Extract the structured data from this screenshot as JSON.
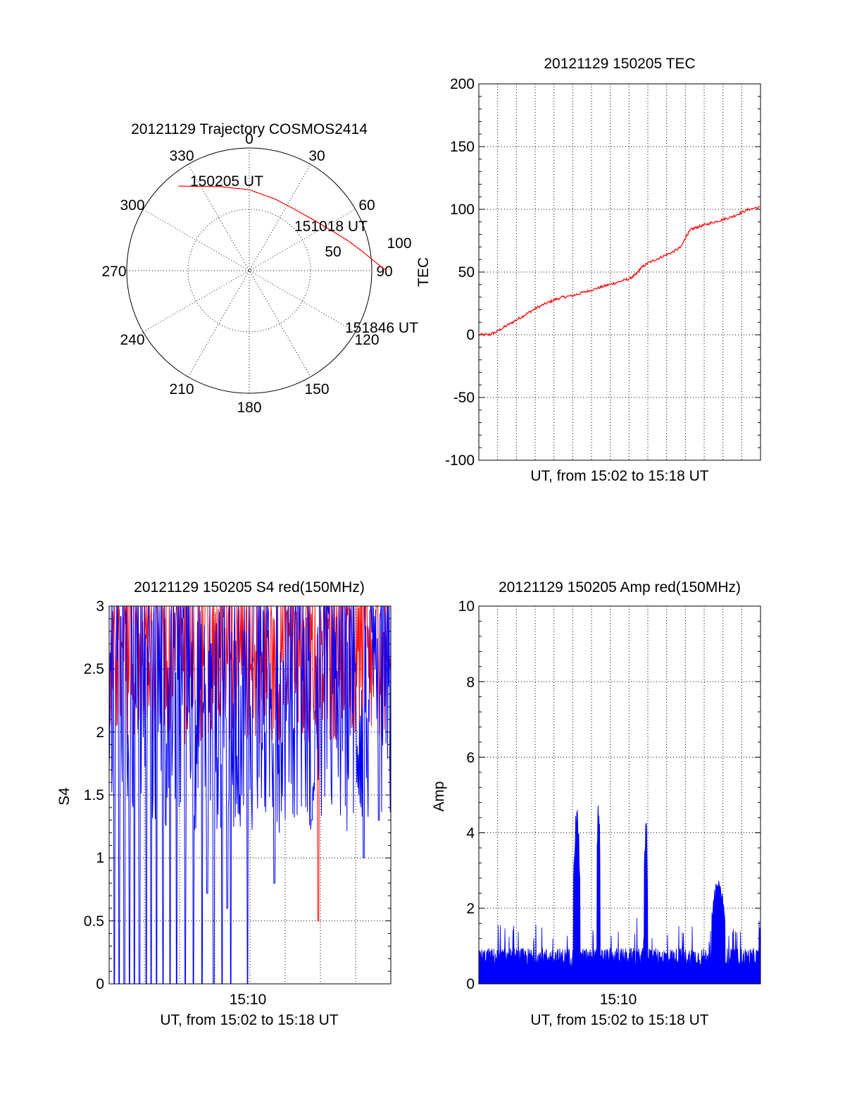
{
  "colors": {
    "red": "#ff0000",
    "blue": "#0000ff",
    "ink": "#000000"
  },
  "chart_data": [
    {
      "type": "polar",
      "title": "20121129 Trajectory COSMOS2414",
      "angle_labels": [
        "0",
        "30",
        "60",
        "90",
        "120",
        "150",
        "180",
        "210",
        "240",
        "270",
        "300",
        "330"
      ],
      "radial_labels": [
        "50",
        "100"
      ],
      "annotations": [
        "150205 UT",
        "151018 UT",
        "151846 UT"
      ],
      "series": [
        {
          "color": "red",
          "points": [
            [
              -40,
              90
            ],
            [
              -35,
              84
            ],
            [
              -20,
              73
            ],
            [
              0,
              66
            ],
            [
              20,
              62
            ],
            [
              35,
              62
            ],
            [
              50,
              66
            ],
            [
              62,
              73
            ],
            [
              73,
              84
            ],
            [
              80,
              93
            ],
            [
              85,
              101
            ],
            [
              88,
              107
            ],
            [
              90,
              112
            ]
          ]
        }
      ]
    },
    {
      "type": "line",
      "title": "20121129 150205 TEC",
      "xlabel": "UT, from 15:02 to 15:18 UT",
      "ylabel": "TEC",
      "xlim": [
        0,
        16.7
      ],
      "ylim": [
        -100,
        200
      ],
      "yticks": [
        "-100",
        "-50",
        "0",
        "50",
        "100",
        "150",
        "200"
      ],
      "grid": true,
      "series": [
        {
          "color": "red",
          "x": [
            0,
            0.6,
            1.0,
            1.5,
            2,
            2.5,
            3,
            3.5,
            4,
            4.5,
            5,
            5.5,
            6,
            6.5,
            7,
            7.5,
            8,
            8.5,
            9,
            9.3,
            9.6,
            10,
            10.5,
            11,
            11.5,
            12,
            12.3,
            12.6,
            13,
            13.5,
            14,
            14.5,
            15,
            15.5,
            16,
            16.7
          ],
          "y": [
            0,
            0,
            2,
            6,
            10,
            14,
            18,
            22,
            25,
            28,
            30,
            31,
            33,
            35,
            37,
            39,
            41,
            43,
            45,
            48,
            53,
            57,
            60,
            63,
            66,
            70,
            79,
            84,
            86,
            88,
            90,
            92,
            94,
            97,
            100,
            102
          ]
        }
      ]
    },
    {
      "type": "line",
      "title": "20121129 150205 S4 red(150MHz)",
      "xlabel": "UT, from 15:02 to 15:18 UT",
      "ylabel": "S4",
      "xlim": [
        0,
        16.7
      ],
      "ylim": [
        0,
        3
      ],
      "xticks": [
        {
          "x": 8.2,
          "label": "15:10"
        }
      ],
      "yticks": [
        "0",
        "0.5",
        "1",
        "1.5",
        "2",
        "2.5",
        "3"
      ],
      "grid": true,
      "series": [
        {
          "color": "red",
          "name": "",
          "noisy": true,
          "floor": 1.9,
          "ceil": 3.0
        },
        {
          "color": "blue",
          "name": "",
          "noisy": true,
          "floor": 1.2,
          "ceil": 3.0
        }
      ],
      "dropouts_blue": [
        0.3,
        0.6,
        0.9,
        1.2,
        1.5,
        1.8,
        2.2,
        2.5,
        2.8,
        3.2,
        3.6,
        4.0,
        4.5,
        5.0,
        5.5,
        6.2,
        6.7,
        7.2,
        8.2
      ],
      "dips_blue": [
        [
          5.8,
          0.72
        ],
        [
          7.0,
          0.6
        ],
        [
          9.8,
          0.8
        ],
        [
          12.0,
          1.3
        ],
        [
          15.1,
          1.0
        ],
        [
          16.0,
          1.3
        ]
      ],
      "dips_red": [
        [
          12.4,
          0.5
        ]
      ]
    },
    {
      "type": "bar",
      "title": "20121129 150205 Amp red(150MHz)",
      "xlabel": "UT, from 15:02 to 15:18 UT",
      "ylabel": "Amp",
      "xlim": [
        0,
        16.7
      ],
      "ylim": [
        0,
        10
      ],
      "xticks": [
        {
          "x": 8.2,
          "label": "15:10"
        }
      ],
      "yticks": [
        "0",
        "2",
        "4",
        "6",
        "8",
        "10"
      ],
      "grid": true,
      "series": [
        {
          "color": "blue",
          "baseline": 0.6,
          "noise": 0.5
        }
      ],
      "bursts": [
        [
          5.6,
          6.0,
          4.7
        ],
        [
          7.0,
          7.2,
          5.0
        ],
        [
          9.8,
          10.0,
          4.5
        ],
        [
          13.8,
          14.6,
          2.8
        ]
      ]
    }
  ]
}
